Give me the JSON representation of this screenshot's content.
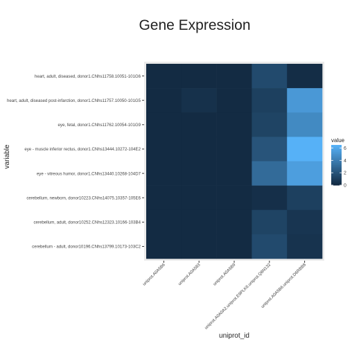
{
  "chart_data": {
    "type": "heatmap",
    "title": "Gene Expression",
    "xlabel": "uniprot_id",
    "ylabel": "variable",
    "x_categories": [
      "uniprot.A0A5B6",
      "uniprot.A0A583",
      "uniprot.A0A5B9",
      "uniprot.A0A0A2.uniprot.E9PLK6.uniprot.Q8N132",
      "uniprot.A0A5B6.uniprot.D6RBB8"
    ],
    "y_categories": [
      "heart, adult, diseased, donor1.CNhs11758.10051-101G6",
      "heart, adult, diseased post-infarction, donor1.CNhs11757.10050-101G5",
      "eye, fetal, donor1.CNhs11762.10054-101G9",
      "eye - muscle inferior rectus, donor1.CNhs13444.10272-104E2",
      "eye - vitreous humor, donor1.CNhs13440.10268-104D7",
      "cerebellum, newborn, donor10223.CNhs14075.10357-105E6",
      "cerebellum, adult, donor10252.CNhs12323.10166-103B4",
      "cerebellum - adult, donor10196.CNhs13799.10173-103C2"
    ],
    "values": [
      [
        0,
        0,
        0,
        1.5,
        0.1
      ],
      [
        0,
        0.3,
        0,
        1.0,
        5.3
      ],
      [
        0,
        0,
        0,
        1.2,
        4.6
      ],
      [
        0,
        0,
        0,
        2.0,
        6.5
      ],
      [
        0,
        0,
        0,
        3.1,
        5.6
      ],
      [
        0,
        0,
        0,
        0.2,
        1.0
      ],
      [
        0,
        0,
        0,
        1.2,
        0.5
      ],
      [
        0,
        0,
        0,
        1.5,
        0.4
      ]
    ],
    "legend": {
      "title": "value",
      "ticks": [
        0,
        2,
        4,
        6
      ],
      "range": [
        0,
        6.5
      ],
      "position": "right"
    },
    "colors": {
      "low": "#132B43",
      "high": "#56B1F7",
      "panel": "#EBEBEB"
    },
    "grid": false
  }
}
